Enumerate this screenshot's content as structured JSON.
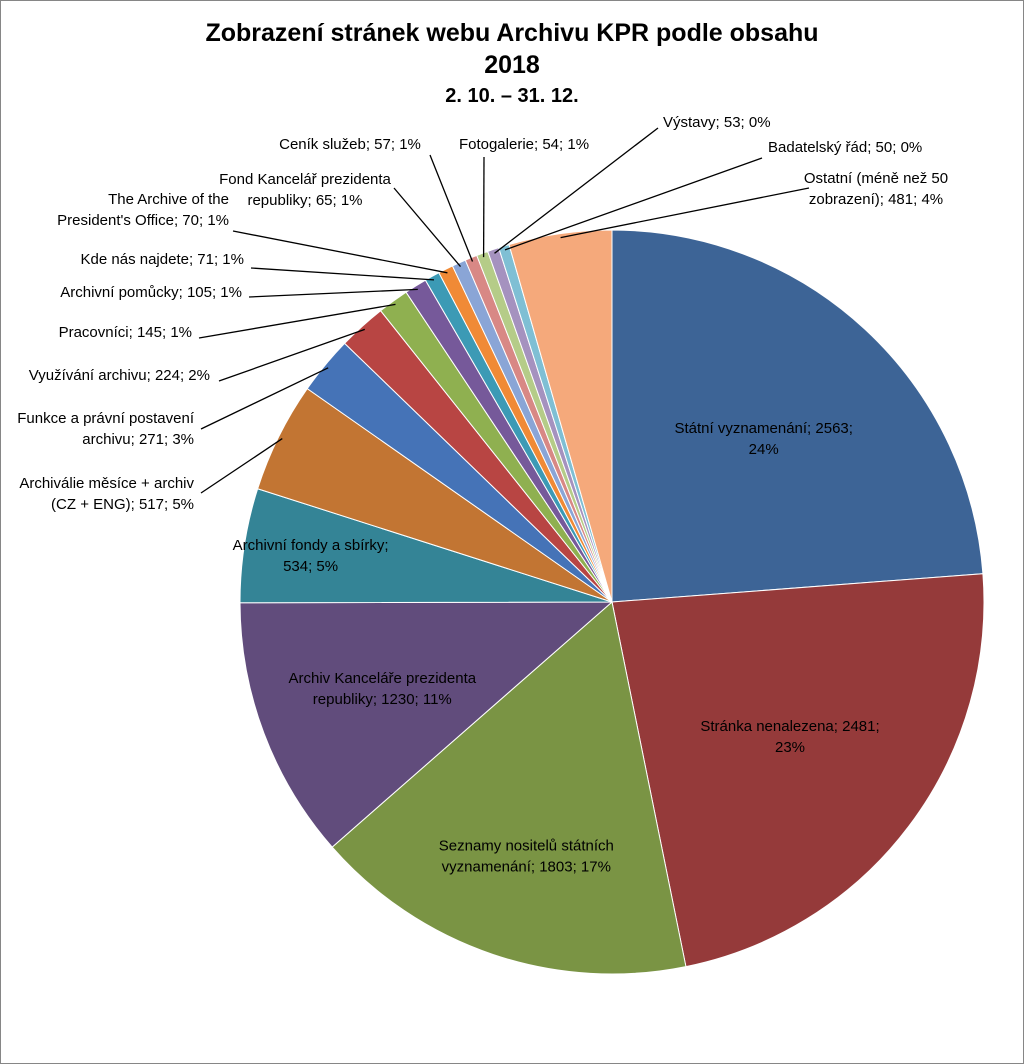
{
  "chart_data": {
    "type": "pie",
    "title": "Zobrazení stránek webu Archivu KPR podle obsahu",
    "subtitle_year": "2018",
    "subtitle_range": "2. 10. – 31. 12.",
    "slices": [
      {
        "name": "Státní vyznamenání",
        "value": 2563,
        "percent": "24%",
        "color": "#3d6496",
        "label_lines": [
          "Státní vyznamenání; 2563;",
          "24%"
        ]
      },
      {
        "name": "Stránka nenalezena",
        "value": 2481,
        "percent": "23%",
        "color": "#953a3a",
        "label_lines": [
          "Stránka nenalezena; 2481;",
          "23%"
        ]
      },
      {
        "name": "Seznamy nositelů státních vyznamenání",
        "value": 1803,
        "percent": "17%",
        "color": "#7a9444",
        "label_lines": [
          "Seznamy nositelů státních",
          "vyznamenání; 1803; 17%"
        ]
      },
      {
        "name": "Archiv Kanceláře prezidenta republiky",
        "value": 1230,
        "percent": "11%",
        "color": "#614c7c",
        "label_lines": [
          "Archiv Kanceláře prezidenta",
          "republiky; 1230; 11%"
        ]
      },
      {
        "name": "Archivní fondy a sbírky",
        "value": 534,
        "percent": "5%",
        "color": "#348496",
        "label_lines": [
          "Archivní fondy a sbírky;",
          "534; 5%"
        ]
      },
      {
        "name": "Archiválie měsíce + archiv (CZ + ENG)",
        "value": 517,
        "percent": "5%",
        "color": "#c27533",
        "label_lines": [
          "Archiválie měsíce + archiv",
          "(CZ + ENG); 517; 5%"
        ]
      },
      {
        "name": "Funkce a právní postavení archivu",
        "value": 271,
        "percent": "3%",
        "color": "#4573b7",
        "label_lines": [
          "Funkce a právní postavení",
          "archivu; 271; 3%"
        ]
      },
      {
        "name": "Využívání archivu",
        "value": 224,
        "percent": "2%",
        "color": "#b84543",
        "label_lines": [
          "Využívání archivu; 224; 2%"
        ]
      },
      {
        "name": "Pracovníci",
        "value": 145,
        "percent": "1%",
        "color": "#8fb050",
        "label_lines": [
          "Pracovníci; 145; 1%"
        ]
      },
      {
        "name": "Archivní pomůcky",
        "value": 105,
        "percent": "1%",
        "color": "#76599a",
        "label_lines": [
          "Archivní pomůcky; 105; 1%"
        ]
      },
      {
        "name": "Kde nás najdete",
        "value": 71,
        "percent": "1%",
        "color": "#3c9ab5",
        "label_lines": [
          "Kde nás najdete; 71; 1%"
        ]
      },
      {
        "name": "The Archive of the President's Office",
        "value": 70,
        "percent": "1%",
        "color": "#f08a36",
        "label_lines": [
          "The Archive of the",
          "President's Office; 70; 1%"
        ]
      },
      {
        "name": "Fond Kancelář prezidenta republiky",
        "value": 65,
        "percent": "1%",
        "color": "#8aa5d6",
        "label_lines": [
          "Fond Kancelář prezidenta",
          "republiky; 65; 1%"
        ]
      },
      {
        "name": "Ceník služeb",
        "value": 57,
        "percent": "1%",
        "color": "#d88885",
        "label_lines": [
          "Ceník služeb; 57; 1%"
        ]
      },
      {
        "name": "Fotogalerie",
        "value": 54,
        "percent": "1%",
        "color": "#b5cc88",
        "label_lines": [
          "Fotogalerie; 54; 1%"
        ]
      },
      {
        "name": "Výstavy",
        "value": 53,
        "percent": "0%",
        "color": "#a592bf",
        "label_lines": [
          "Výstavy; 53; 0%"
        ]
      },
      {
        "name": "Badatelský řád",
        "value": 50,
        "percent": "0%",
        "color": "#7fbfd4",
        "label_lines": [
          "Badatelský řád; 50; 0%"
        ]
      },
      {
        "name": "Ostatní (méně než 50 zobrazení)",
        "value": 481,
        "percent": "4%",
        "color": "#f5a97b",
        "label_lines": [
          "Ostatní (méně než 50",
          "zobrazení); 481; 4%"
        ]
      }
    ]
  }
}
